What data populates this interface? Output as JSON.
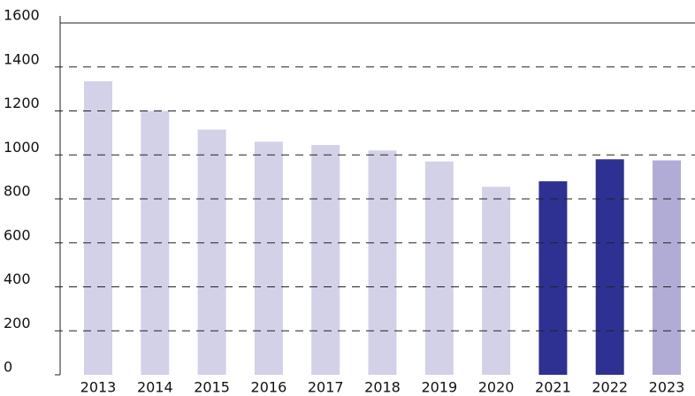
{
  "chart_data": {
    "type": "bar",
    "categories": [
      "2013",
      "2014",
      "2015",
      "2016",
      "2017",
      "2018",
      "2019",
      "2020",
      "2021",
      "2022",
      "2023"
    ],
    "values": [
      1335,
      1200,
      1115,
      1060,
      1045,
      1020,
      970,
      855,
      880,
      980,
      975
    ],
    "colors": [
      "#d3d1e8",
      "#d3d1e8",
      "#d3d1e8",
      "#d3d1e8",
      "#d3d1e8",
      "#d3d1e8",
      "#d3d1e8",
      "#d3d1e8",
      "#2e3192",
      "#2e3192",
      "#b0acd6"
    ],
    "ylim": [
      0,
      1600
    ],
    "yticks": [
      0,
      200,
      400,
      600,
      800,
      1000,
      1200,
      1400,
      1600
    ],
    "grid": true
  }
}
